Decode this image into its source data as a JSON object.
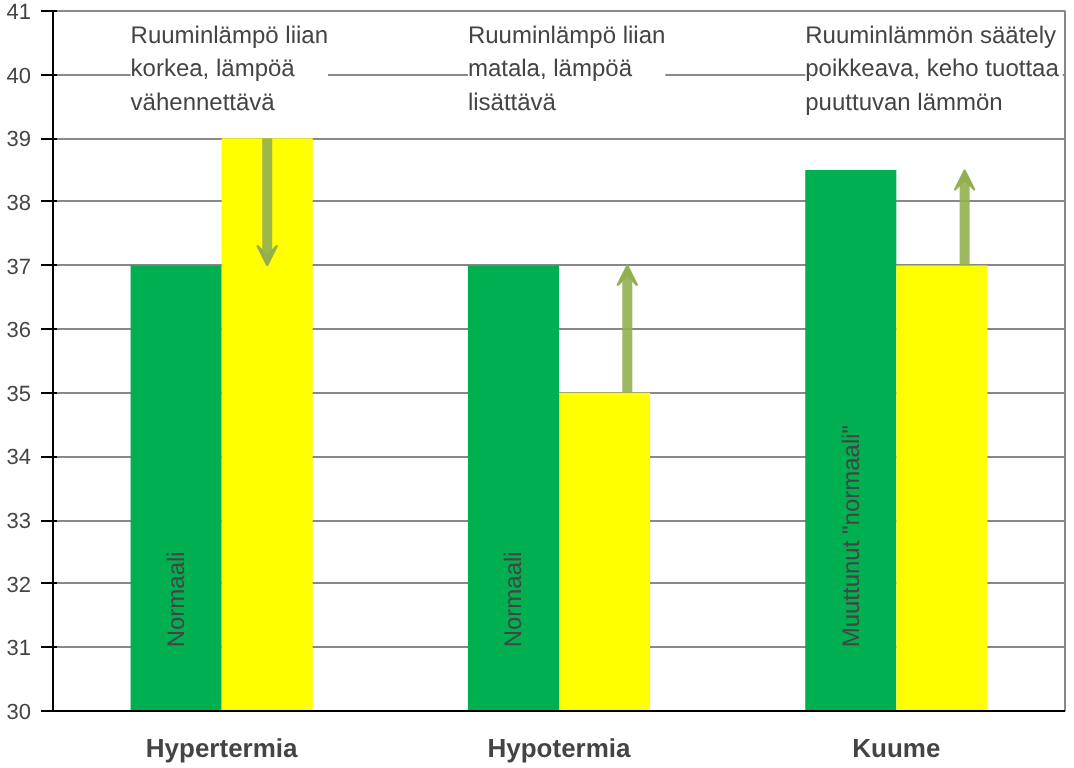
{
  "chart_data": {
    "type": "bar",
    "categories": [
      "Hypertermia",
      "Hypotermia",
      "Kuume"
    ],
    "series": [
      {
        "color": "#00b050",
        "values": [
          37,
          37,
          38.5
        ]
      },
      {
        "color": "#ffff00",
        "values": [
          39,
          35,
          37
        ]
      }
    ],
    "ylim": [
      30,
      41
    ],
    "yticks": [
      30,
      31,
      32,
      33,
      34,
      35,
      36,
      37,
      38,
      39,
      40,
      41
    ],
    "grid": "y",
    "annotations": [
      "Ruuminlämpö liian\nkorkea, lämpöä\nvähennettävä",
      "Ruuminlämpö liian\nmatala, lämpöä\nlisättävä",
      "Ruuminlämmön  säätely\npoikkeava, keho tuottaa\npuuttuvan lämmön",
      {
        "text": "Normaali",
        "x": "Hypertermia",
        "y": 31
      },
      {
        "text": "Normaali",
        "x": "Hypotermia",
        "y": 31
      },
      {
        "text": "Muuttunut \"normaali\"",
        "x": "Kuume",
        "y": 31
      }
    ]
  }
}
